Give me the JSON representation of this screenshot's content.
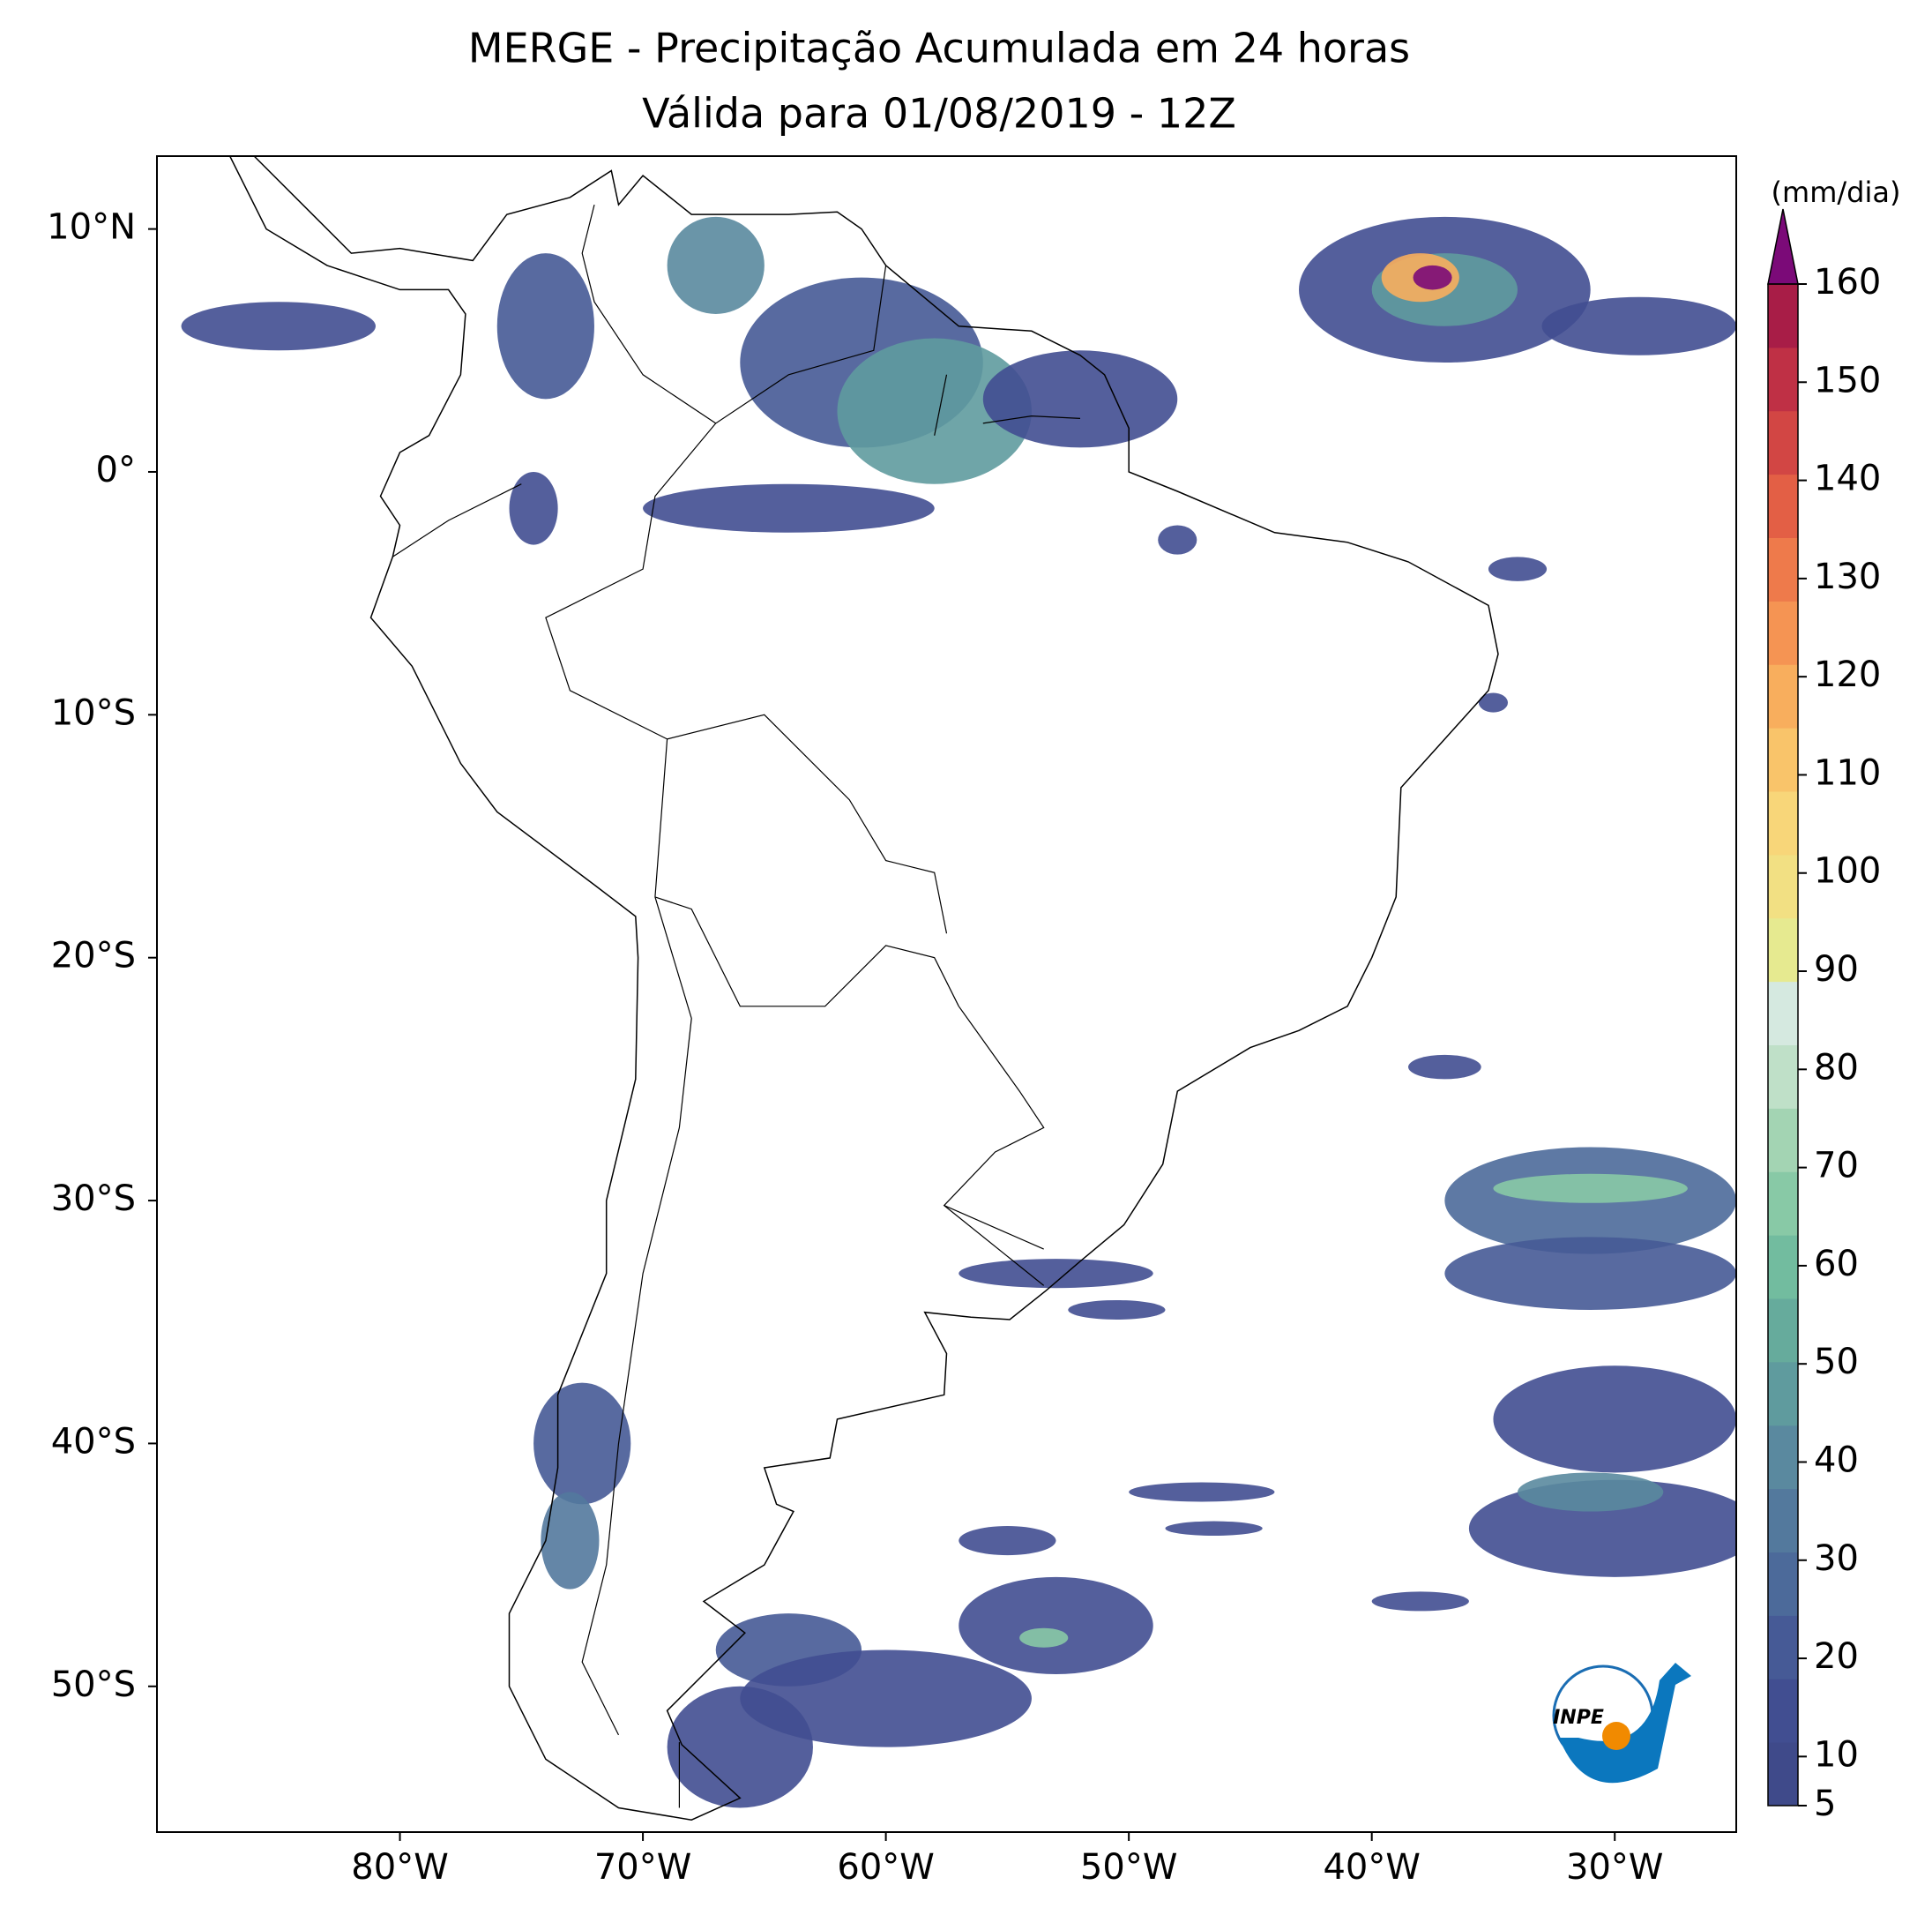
{
  "title": "MERGE - Precipitação Acumulada em 24 horas",
  "subtitle": "Válida para 01/08/2019 - 12Z",
  "map": {
    "xlim": [
      -90,
      -25
    ],
    "ylim": [
      -56,
      13
    ],
    "xticks": [
      {
        "value": -80,
        "label": "80°W"
      },
      {
        "value": -70,
        "label": "70°W"
      },
      {
        "value": -60,
        "label": "60°W"
      },
      {
        "value": -50,
        "label": "50°W"
      },
      {
        "value": -40,
        "label": "40°W"
      },
      {
        "value": -30,
        "label": "30°W"
      }
    ],
    "yticks": [
      {
        "value": 10,
        "label": "10°N"
      },
      {
        "value": 0,
        "label": "0°"
      },
      {
        "value": -10,
        "label": "10°S"
      },
      {
        "value": -20,
        "label": "20°S"
      },
      {
        "value": -30,
        "label": "30°S"
      },
      {
        "value": -40,
        "label": "40°S"
      },
      {
        "value": -50,
        "label": "50°S"
      }
    ]
  },
  "colorbar": {
    "label": "(mm/dia)",
    "lim": [
      5,
      160
    ],
    "ticks": [
      5,
      10,
      20,
      30,
      40,
      50,
      60,
      70,
      80,
      90,
      100,
      110,
      120,
      130,
      140,
      150,
      160
    ],
    "colors": [
      "#3f4a8a",
      "#414e91",
      "#465a96",
      "#4c6a9a",
      "#53799d",
      "#5a899f",
      "#5f9b9e",
      "#66ab9c",
      "#72bc9f",
      "#88c9a6",
      "#a3d4b3",
      "#bfe0c8",
      "#d5e9e0",
      "#e6ea90",
      "#f2e083",
      "#f8d679",
      "#f9c46a",
      "#f8ae5d",
      "#f59453",
      "#ee7a4b",
      "#e35f45",
      "#d24644",
      "#bf3045",
      "#a81d47"
    ],
    "extend_color": "#7b0a78"
  },
  "logo": {
    "text": "INPE"
  }
}
